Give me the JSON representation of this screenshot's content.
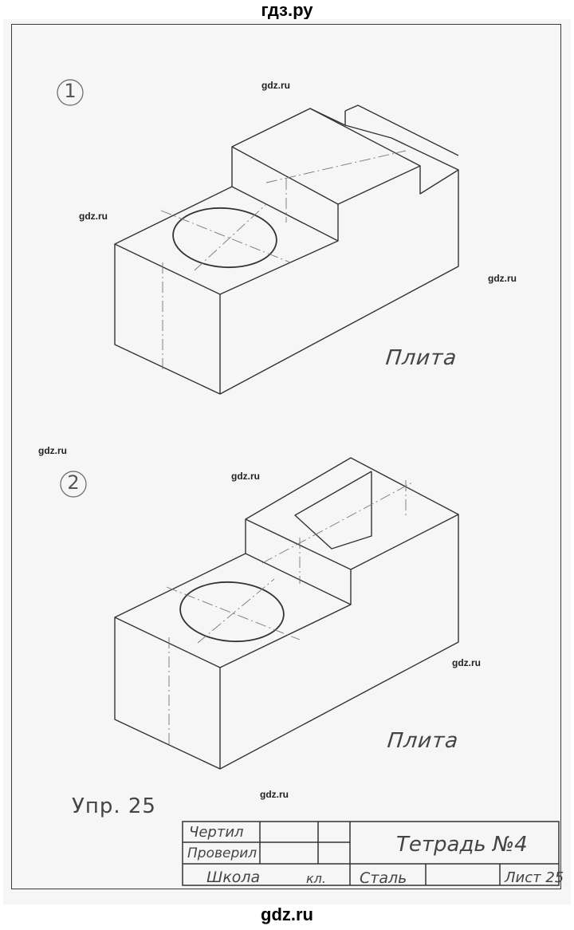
{
  "site": {
    "header_text": "гдз.ру",
    "footer_text": "gdz.ru"
  },
  "watermarks": [
    "gdz.ru",
    "gdz.ru",
    "gdz.ru",
    "gdz.ru",
    "gdz.ru",
    "gdz.ru",
    "gdz.ru"
  ],
  "drawings": [
    {
      "number": "1",
      "label": "Плита"
    },
    {
      "number": "2",
      "label": "Плита"
    }
  ],
  "exercise": "Упр. 25",
  "title_block": {
    "drew_label": "Чертил",
    "checked_label": "Проверил",
    "school_label": "Школа",
    "class_label": "кл.",
    "material": "Сталь",
    "notebook_title": "Тетрадь №4",
    "sheet_label": "Лист 25"
  }
}
